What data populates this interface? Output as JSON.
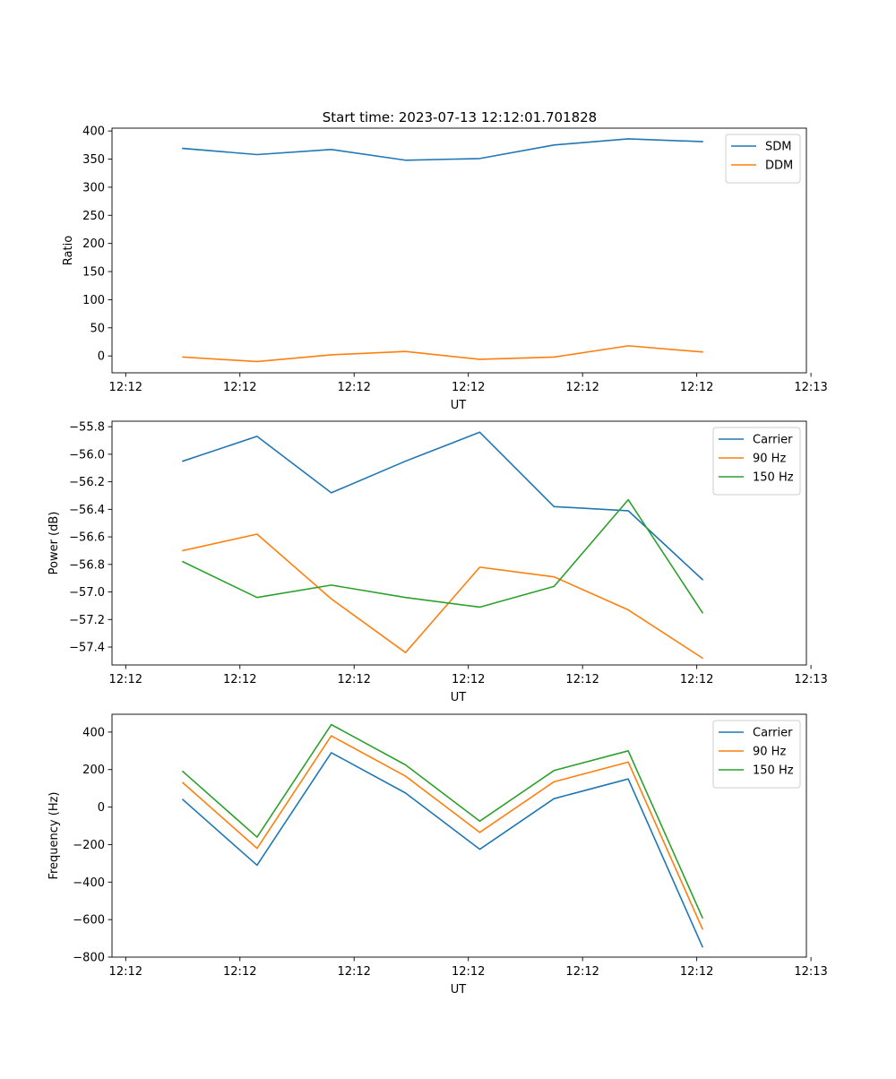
{
  "figure_title": "Start time: 2023-07-13 12:12:01.701828",
  "colors": {
    "c0": "#1f77b4",
    "c1": "#ff7f0e",
    "c2": "#2ca02c"
  },
  "chart_data": [
    {
      "type": "line",
      "xlabel": "UT",
      "ylabel": "Ratio",
      "x": [
        0.5,
        1.15,
        1.8,
        2.45,
        3.1,
        3.75,
        4.4,
        5.05
      ],
      "xlim": [
        -0.12,
        5.96
      ],
      "xticks": [
        0,
        1,
        2,
        3,
        4,
        5,
        6
      ],
      "xtick_labels": [
        "12:12",
        "12:12",
        "12:12",
        "12:12",
        "12:12",
        "12:12",
        "12:13"
      ],
      "ylim": [
        -30,
        405
      ],
      "yticks": [
        0,
        50,
        100,
        150,
        200,
        250,
        300,
        350,
        400
      ],
      "ytick_labels": [
        "0",
        "50",
        "100",
        "150",
        "200",
        "250",
        "300",
        "350",
        "400"
      ],
      "legend_position": "top-right",
      "series": [
        {
          "name": "SDM",
          "color": "#1f77b4",
          "values": [
            369,
            358,
            367,
            348,
            351,
            375,
            386,
            381
          ]
        },
        {
          "name": "DDM",
          "color": "#ff7f0e",
          "values": [
            -2,
            -10,
            2,
            8,
            -6,
            -2,
            18,
            7
          ]
        }
      ]
    },
    {
      "type": "line",
      "xlabel": "UT",
      "ylabel": "Power (dB)",
      "x": [
        0.5,
        1.15,
        1.8,
        2.45,
        3.1,
        3.75,
        4.4,
        5.05
      ],
      "xlim": [
        -0.12,
        5.96
      ],
      "xticks": [
        0,
        1,
        2,
        3,
        4,
        5,
        6
      ],
      "xtick_labels": [
        "12:12",
        "12:12",
        "12:12",
        "12:12",
        "12:12",
        "12:12",
        "12:13"
      ],
      "ylim": [
        -57.53,
        -55.76
      ],
      "yticks": [
        -57.4,
        -57.2,
        -57.0,
        -56.8,
        -56.6,
        -56.4,
        -56.2,
        -56.0,
        -55.8
      ],
      "ytick_labels": [
        "−57.4",
        "−57.2",
        "−57.0",
        "−56.8",
        "−56.6",
        "−56.4",
        "−56.2",
        "−56.0",
        "−55.8"
      ],
      "legend_position": "top-right",
      "series": [
        {
          "name": "Carrier",
          "color": "#1f77b4",
          "values": [
            -56.05,
            -55.87,
            -56.28,
            -56.05,
            -55.84,
            -56.38,
            -56.41,
            -56.91
          ]
        },
        {
          "name": "90 Hz",
          "color": "#ff7f0e",
          "values": [
            -56.7,
            -56.58,
            -57.05,
            -57.44,
            -56.82,
            -56.89,
            -57.13,
            -57.48
          ]
        },
        {
          "name": "150 Hz",
          "color": "#2ca02c",
          "values": [
            -56.78,
            -57.04,
            -56.95,
            -57.04,
            -57.11,
            -56.96,
            -56.33,
            -57.15
          ]
        }
      ]
    },
    {
      "type": "line",
      "xlabel": "UT",
      "ylabel": "Frequency (Hz)",
      "x": [
        0.5,
        1.15,
        1.8,
        2.45,
        3.1,
        3.75,
        4.4,
        5.05
      ],
      "xlim": [
        -0.12,
        5.96
      ],
      "xticks": [
        0,
        1,
        2,
        3,
        4,
        5,
        6
      ],
      "xtick_labels": [
        "12:12",
        "12:12",
        "12:12",
        "12:12",
        "12:12",
        "12:12",
        "12:13"
      ],
      "ylim": [
        -800,
        495
      ],
      "yticks": [
        -800,
        -600,
        -400,
        -200,
        0,
        200,
        400
      ],
      "ytick_labels": [
        "−800",
        "−600",
        "−400",
        "−200",
        "0",
        "200",
        "400"
      ],
      "legend_position": "top-right",
      "series": [
        {
          "name": "Carrier",
          "color": "#1f77b4",
          "values": [
            40,
            -310,
            290,
            75,
            -225,
            45,
            150,
            -745
          ]
        },
        {
          "name": "90 Hz",
          "color": "#ff7f0e",
          "values": [
            130,
            -220,
            380,
            165,
            -135,
            135,
            240,
            -650
          ]
        },
        {
          "name": "150 Hz",
          "color": "#2ca02c",
          "values": [
            190,
            -160,
            440,
            225,
            -75,
            195,
            300,
            -590
          ]
        }
      ]
    }
  ]
}
